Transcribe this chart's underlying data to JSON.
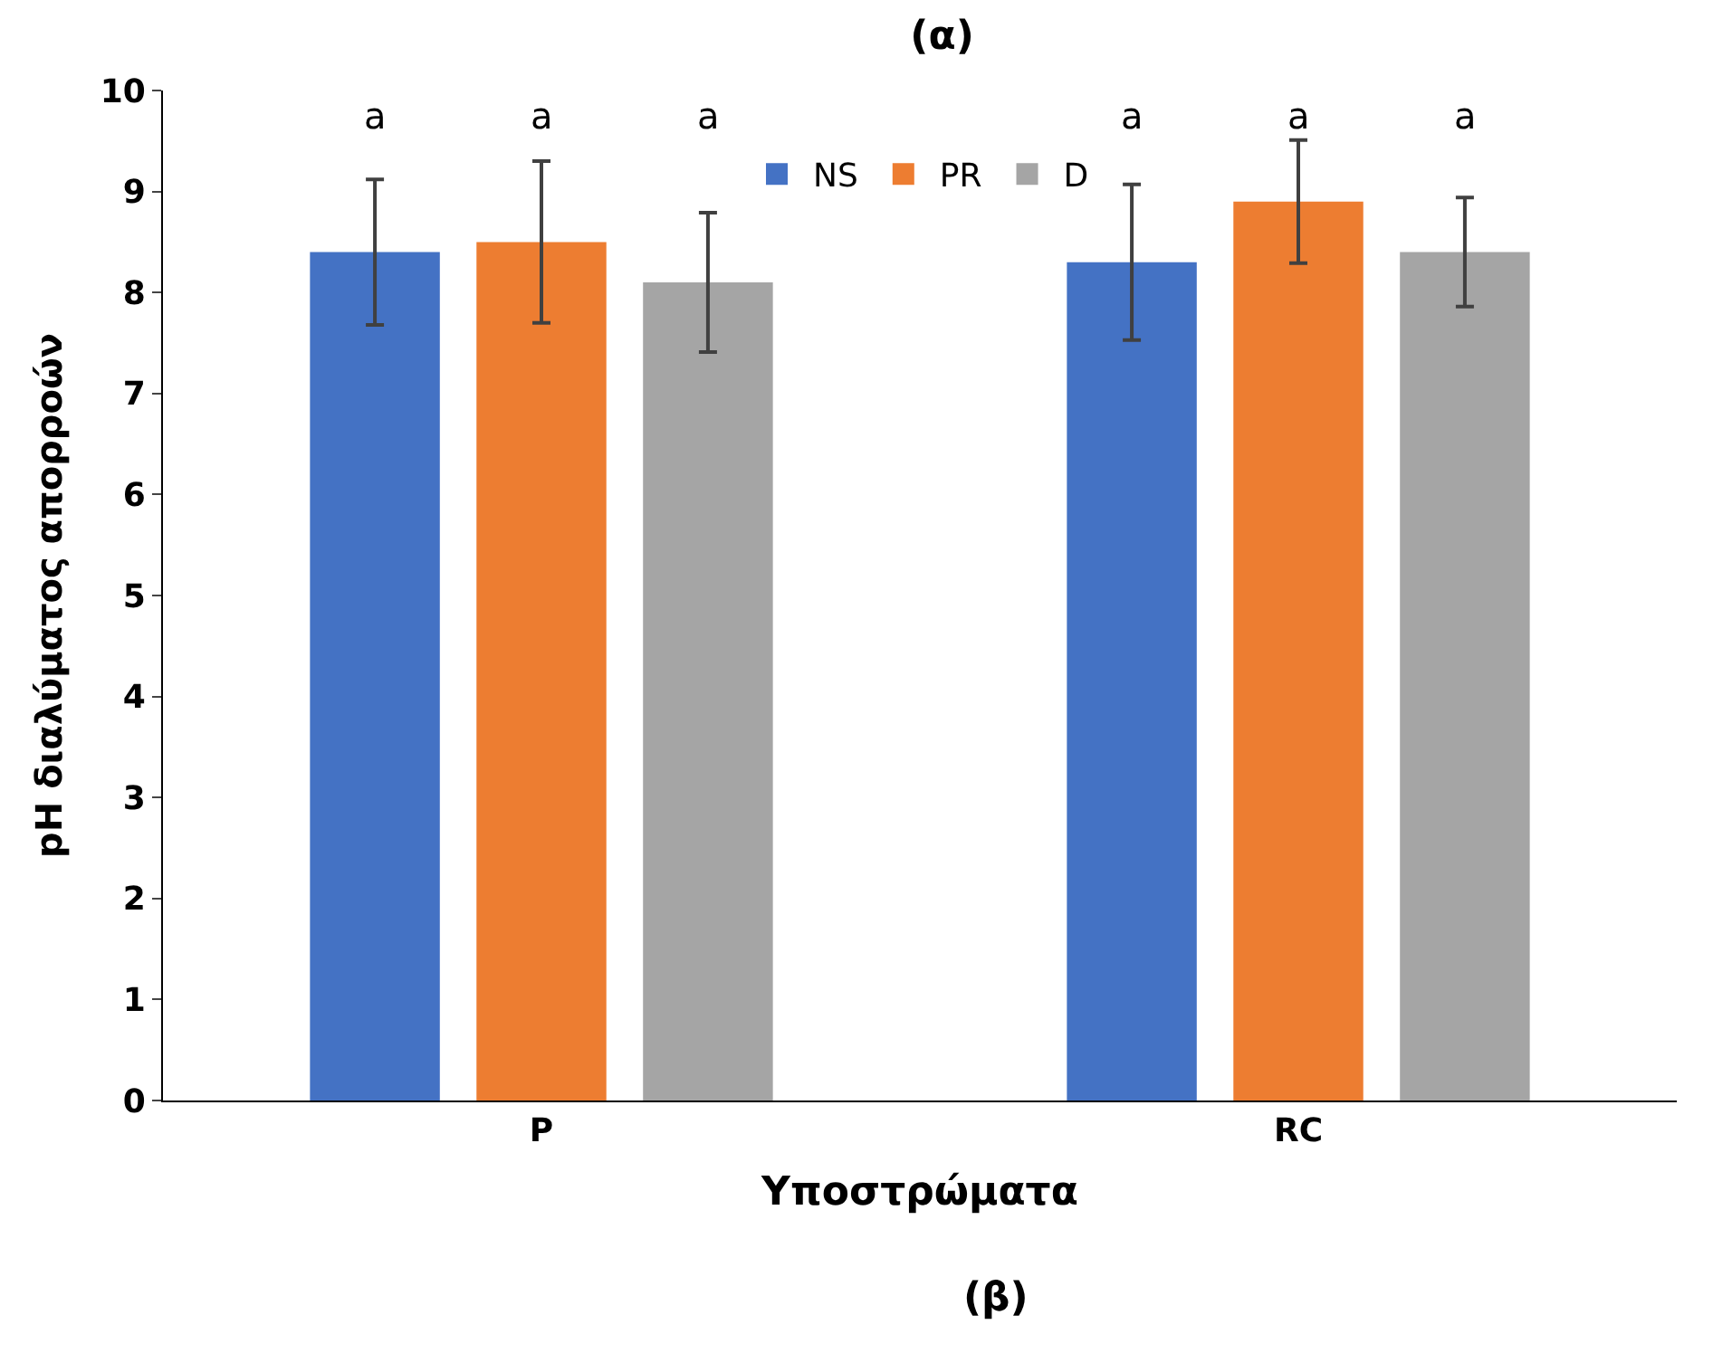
{
  "chart_data": {
    "type": "bar",
    "title": "(α)",
    "xlabel": "Υποστρώματα",
    "ylabel": "pH διαλύματος απορροών",
    "categories": [
      "P",
      "RC"
    ],
    "series": [
      {
        "name": "NS",
        "color": "#4472c4",
        "values": [
          8.4,
          8.3
        ],
        "errors": [
          0.72,
          0.77
        ]
      },
      {
        "name": "PR",
        "color": "#ed7d31",
        "values": [
          8.5,
          8.9
        ],
        "errors": [
          0.8,
          0.61
        ]
      },
      {
        "name": "D",
        "color": "#a5a5a5",
        "values": [
          8.1,
          8.4
        ],
        "errors": [
          0.69,
          0.54
        ]
      }
    ],
    "ylim": [
      0,
      10
    ],
    "yticks": [
      0,
      1,
      2,
      3,
      4,
      5,
      6,
      7,
      8,
      9,
      10
    ],
    "grid": false,
    "legend": "top",
    "annotations": [
      "a",
      "a",
      "a",
      "a",
      "a",
      "a",
      "(β)"
    ]
  }
}
